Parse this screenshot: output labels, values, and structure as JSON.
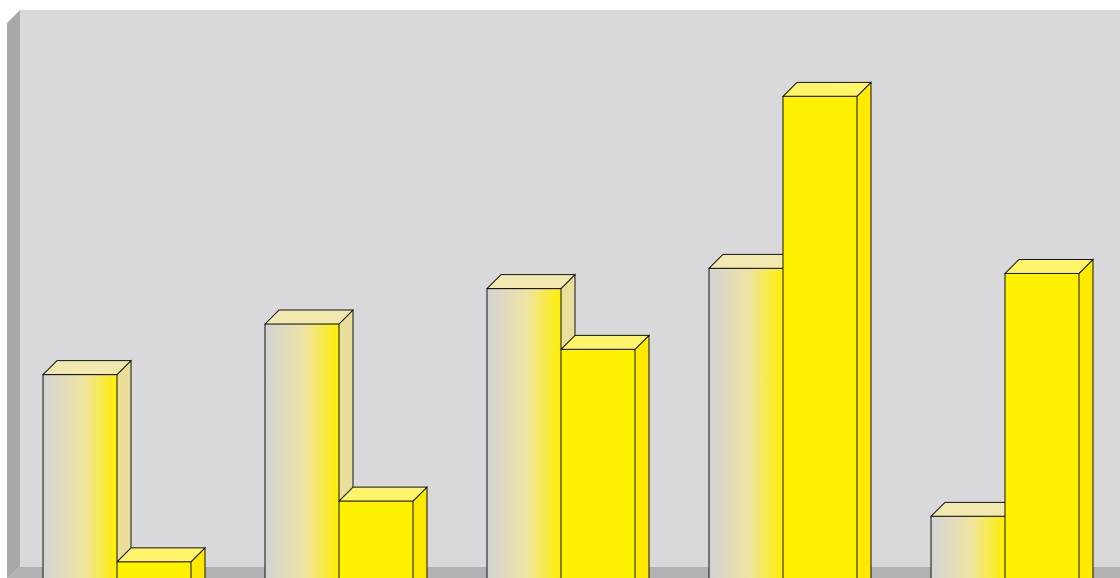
{
  "chart_data": {
    "type": "bar",
    "style": "3d-clustered-column",
    "title": "",
    "xlabel": "",
    "ylabel": "",
    "categories": [
      "",
      "",
      "",
      "",
      ""
    ],
    "ylim": [
      0,
      100
    ],
    "grid": false,
    "legend": "none",
    "series": [
      {
        "values": [
          39.0,
          49.0,
          56.0,
          60.0,
          11.0
        ],
        "color": "#f3e66a",
        "fill": "gradient-gray-to-yellow"
      },
      {
        "values": [
          2.0,
          14.0,
          44.0,
          94.0,
          59.0
        ],
        "color": "#fff200",
        "fill": "solid-yellow"
      }
    ],
    "colors": {
      "wall": "#d9d9db",
      "wall_side": "#a9a9ac",
      "floor": "#b2b2b5",
      "gradient_start": "#d3d3d6",
      "gradient_end": "#ffef00",
      "bar_solid": "#fff200",
      "bar_side": "#ffe900",
      "outline": "#111111"
    }
  }
}
